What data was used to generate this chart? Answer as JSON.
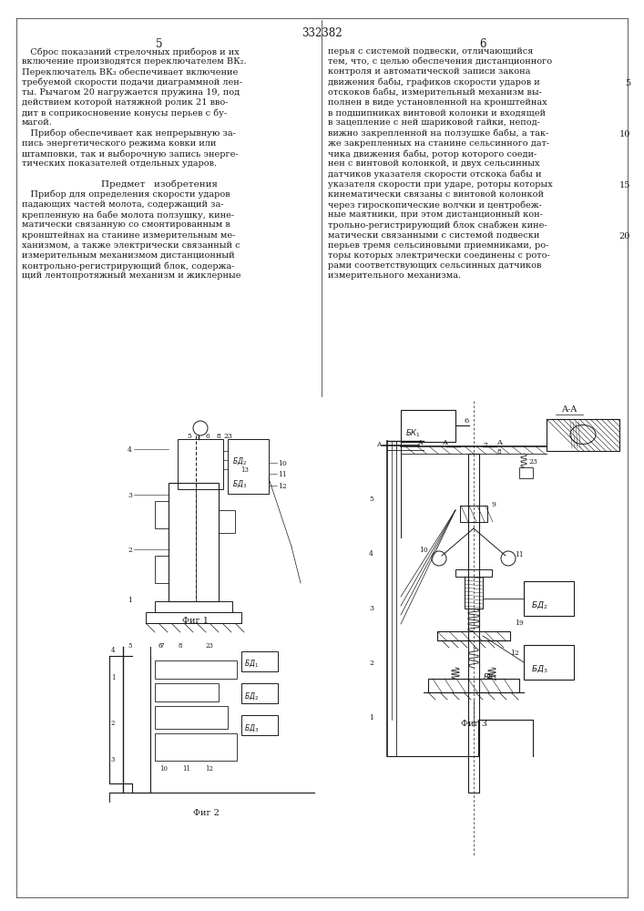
{
  "patent_number": "332382",
  "background_color": "#ffffff",
  "text_color": "#1a1a1a",
  "left_col_lines": [
    "Сброс показаний стрелочных приборов и их",
    "включение производятся переключателем ВК₂.",
    "Переключатель ВК₃ обеспечивает включение",
    "требуемой скорости подачи диаграммной лен-",
    "ты. Рычагом 20 нагружается пружина 19, под",
    "действием которой натяжной ролик 21 вво-",
    "дит в соприкосновение конусы перьев с бу-",
    "магой.",
    "Прибор обеспечивает как непрерывную за-",
    "пись энергетического режима ковки или",
    "штамповки, так и выборочную запись энерге-",
    "тических показателей отдельных ударов.",
    "",
    "Предмет   изобретения",
    "Прибор для определения скорости ударов",
    "падающих частей молота, содержащий за-",
    "крепленную на бабе молота ползушку, кине-",
    "матически связанную со смонтированным в",
    "кронштейнах на станине измерительным ме-",
    "ханизмом, а также электрически связанный с",
    "измерительным механизмом дистанционный",
    "контрольно-регистрирующий блок, содержа-",
    "щий лентопротяжный механизм и жиклерные"
  ],
  "right_col_lines": [
    "перья с системой подвески, отличающийся",
    "тем, что, с целью обеспечения дистанционного",
    "контроля и автоматической записи закона",
    "движения бабы, графиков скорости ударов и",
    "отскоков бабы, измерительный механизм вы-",
    "полнен в виде установленной на кронштейнах",
    "в подшипниках винтовой колонки и входящей",
    "в зацепление с ней шариковой гайки, непод-",
    "вижно закрепленной на ползушке бабы, а так-",
    "же закрепленных на станине сельсинного дат-",
    "чика движения бабы, ротор которого соеди-",
    "нен с винтовой колонкой, и двух сельсинных",
    "датчиков указателя скорости отскока бабы и",
    "указателя скорости при ударе, роторы которых",
    "кинематически связаны с винтовой колонкой",
    "через гироскопические волчки и центробеж-",
    "ные маятники, при этом дистанционный кон-",
    "трольно-регистрирующий блок снабжен кине-",
    "матически связанными с системой подвески",
    "перьев тремя сельсиновыми приемниками, ро-",
    "торы которых электрически соединены с рото-",
    "рами соответствующих сельсинных датчиков",
    "измерительного механизма."
  ],
  "fig1_caption": "Фиг 1",
  "fig2_caption": "Фиг 2",
  "fig3_caption": "Фиг 3",
  "aa_label": "A-A"
}
